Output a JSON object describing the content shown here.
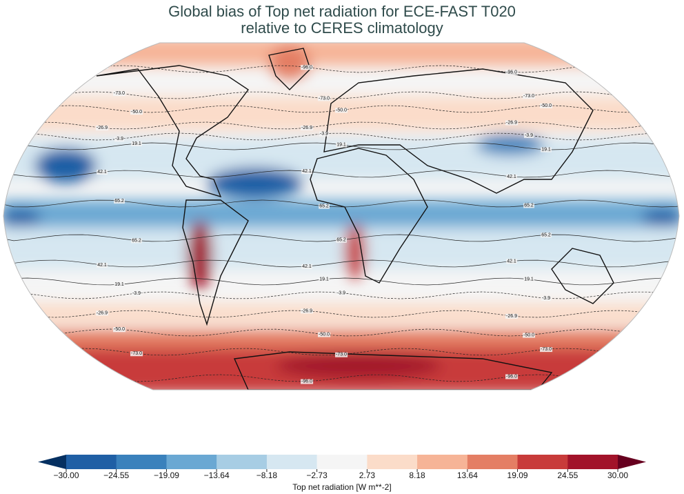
{
  "title": [
    "Global bias of Top net radiation for ECE-FAST T020",
    "relative to CERES climatology"
  ],
  "colorbar": {
    "label": "Top net radiation [W m**-2]",
    "ticks": [
      {
        "value": -30,
        "label": "−30.00"
      },
      {
        "value": -24.55,
        "label": "−24.55"
      },
      {
        "value": -19.09,
        "label": "−19.09"
      },
      {
        "value": -13.64,
        "label": "−13.64"
      },
      {
        "value": -8.18,
        "label": "−8.18"
      },
      {
        "value": -2.73,
        "label": "−2.73"
      },
      {
        "value": 2.73,
        "label": "2.73"
      },
      {
        "value": 8.18,
        "label": "8.18"
      },
      {
        "value": 13.64,
        "label": "13.64"
      },
      {
        "value": 19.09,
        "label": "19.09"
      },
      {
        "value": 24.55,
        "label": "24.55"
      },
      {
        "value": 30,
        "label": "30.00"
      }
    ],
    "colors": [
      "#1f5fa5",
      "#3a81bc",
      "#6aa8d3",
      "#a7cde4",
      "#d6e7f1",
      "#f5f5f5",
      "#fbdcc9",
      "#f6b497",
      "#e47e64",
      "#c83b3a",
      "#a2132a"
    ],
    "extend_colors": [
      "#053061",
      "#67001f"
    ]
  },
  "contour_levels": [
    "-96.0",
    "-73.0",
    "-50.0",
    "-26.9",
    "-3.9",
    "19.1",
    "42.1",
    "65.2"
  ]
}
